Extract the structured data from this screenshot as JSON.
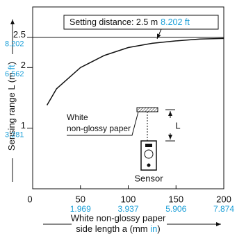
{
  "chart_data": {
    "type": "line",
    "y_label": [
      "Sensing range L (m ",
      "ft",
      ")"
    ],
    "x_label": [
      "White non-glossy paper",
      "side length a (mm ",
      "in",
      ")"
    ],
    "x": [
      15,
      25,
      50,
      75,
      100,
      125,
      150,
      175,
      200
    ],
    "series": [
      {
        "color": "#111111",
        "values": [
          1.38,
          1.65,
          2.0,
          2.2,
          2.33,
          2.4,
          2.44,
          2.47,
          2.48
        ]
      }
    ],
    "xlim": [
      0,
      200
    ],
    "xticks": [
      0,
      50,
      100,
      150,
      200
    ],
    "xticks_in": [
      {
        "value": 50,
        "label": "1.969"
      },
      {
        "value": 100,
        "label": "3.937"
      },
      {
        "value": 150,
        "label": "5.906"
      },
      {
        "value": 200,
        "label": "7.874"
      }
    ],
    "ylim": [
      0,
      3
    ],
    "yticks": [
      1,
      2,
      2.5
    ],
    "yticks_ft": [
      {
        "value": 1,
        "label": "3.281"
      },
      {
        "value": 2,
        "label": "6.562"
      },
      {
        "value": 2.5,
        "label": "8.202"
      }
    ],
    "setting_distance": {
      "value": 2.5,
      "label": "Setting  distance: 2.5 m",
      "label_ft": "8.202 ft"
    },
    "inset": {
      "paper": [
        "White",
        "non-glossy paper"
      ],
      "distance": "L",
      "sensor": "Sensor"
    }
  }
}
